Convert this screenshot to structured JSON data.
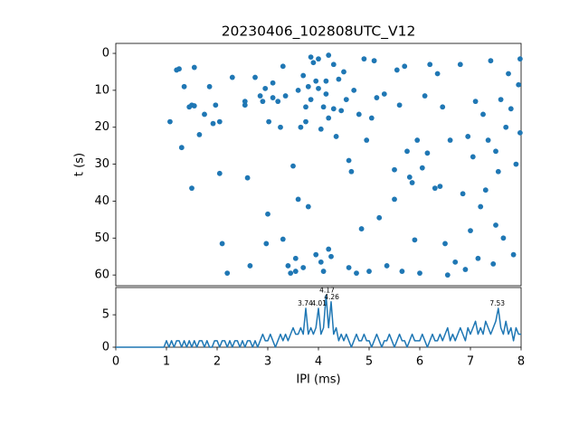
{
  "chart_data": [
    {
      "type": "scatter",
      "title": "20230406_102808UTC_V12",
      "ylabel": "t (s)",
      "color": "#1f77b4",
      "x": [
        1.07,
        1.2,
        1.25,
        1.3,
        1.35,
        1.45,
        1.5,
        1.5,
        1.55,
        1.55,
        1.65,
        1.75,
        1.85,
        1.92,
        1.97,
        2.05,
        2.05,
        2.1,
        2.2,
        2.3,
        2.55,
        2.55,
        2.6,
        2.65,
        2.75,
        2.85,
        2.9,
        2.95,
        2.97,
        3.0,
        3.02,
        3.1,
        3.1,
        3.2,
        3.25,
        3.3,
        3.3,
        3.35,
        3.4,
        3.45,
        3.5,
        3.55,
        3.55,
        3.6,
        3.6,
        3.65,
        3.7,
        3.7,
        3.75,
        3.75,
        3.8,
        3.8,
        3.85,
        3.85,
        3.9,
        3.95,
        3.95,
        4.0,
        4.0,
        4.05,
        4.05,
        4.1,
        4.1,
        4.15,
        4.15,
        4.2,
        4.2,
        4.2,
        4.25,
        4.3,
        4.3,
        4.35,
        4.4,
        4.45,
        4.5,
        4.55,
        4.6,
        4.6,
        4.65,
        4.7,
        4.75,
        4.8,
        4.85,
        4.9,
        4.95,
        5.0,
        5.05,
        5.1,
        5.15,
        5.2,
        5.3,
        5.35,
        5.5,
        5.5,
        5.55,
        5.6,
        5.65,
        5.7,
        5.75,
        5.8,
        5.85,
        5.9,
        5.95,
        6.0,
        6.05,
        6.1,
        6.15,
        6.2,
        6.3,
        6.35,
        6.4,
        6.45,
        6.5,
        6.55,
        6.6,
        6.7,
        6.8,
        6.85,
        6.9,
        6.95,
        7.0,
        7.05,
        7.1,
        7.15,
        7.2,
        7.25,
        7.3,
        7.35,
        7.4,
        7.45,
        7.5,
        7.5,
        7.55,
        7.6,
        7.65,
        7.7,
        7.75,
        7.8,
        7.85,
        7.9,
        7.95,
        7.98,
        7.98
      ],
      "y": [
        18.5,
        4.5,
        4.2,
        25.5,
        9,
        14.5,
        36.5,
        14,
        3.8,
        14.2,
        22,
        16.5,
        9,
        19,
        14,
        18.5,
        32.5,
        51.5,
        59.5,
        6.5,
        14,
        13,
        33.7,
        57.5,
        6.5,
        11.5,
        13,
        9.5,
        51.5,
        43.5,
        18.5,
        8,
        12,
        13,
        20,
        50.3,
        3.5,
        11.5,
        57.5,
        59.5,
        30.5,
        59,
        55.5,
        10,
        39.5,
        20,
        6,
        58,
        18.5,
        14.5,
        9,
        41.5,
        1,
        12.5,
        2.5,
        7.5,
        54.5,
        1.5,
        9.5,
        20.5,
        56.5,
        59,
        14.5,
        7.5,
        11,
        0.5,
        17.5,
        53,
        55,
        3,
        15,
        22.5,
        7,
        15.5,
        5,
        12.5,
        29,
        58,
        32,
        10,
        59.5,
        16.5,
        47.5,
        1.5,
        23.5,
        59,
        17.5,
        2,
        12,
        44.5,
        11,
        57.5,
        39.5,
        31.5,
        4.5,
        14,
        59,
        3.5,
        26.5,
        33.5,
        35,
        50.5,
        23.5,
        59.5,
        31,
        11.5,
        27,
        3,
        36.5,
        5.5,
        36,
        14.5,
        51.5,
        60,
        23.5,
        56.5,
        3,
        38,
        58.5,
        22.5,
        48,
        28,
        13,
        55.5,
        41.5,
        16.5,
        37,
        23.5,
        2,
        57,
        26.5,
        46.5,
        32,
        12.5,
        50,
        20,
        5.5,
        15,
        54.5,
        30,
        8.5,
        1.5,
        21.5
      ],
      "xlim": [
        0,
        8
      ],
      "ylim": [
        62.9,
        -2.7
      ],
      "yticks": [
        0,
        10,
        20,
        30,
        40,
        50,
        60
      ]
    },
    {
      "type": "line",
      "xlabel": "IPI (ms)",
      "color": "#1f77b4",
      "x": [
        0,
        0.05,
        0.1,
        0.15,
        0.2,
        0.25,
        0.3,
        0.35,
        0.4,
        0.45,
        0.5,
        0.55,
        0.6,
        0.65,
        0.7,
        0.75,
        0.8,
        0.85,
        0.9,
        0.95,
        1,
        1.05,
        1.1,
        1.15,
        1.2,
        1.25,
        1.3,
        1.35,
        1.4,
        1.45,
        1.5,
        1.55,
        1.6,
        1.65,
        1.7,
        1.75,
        1.8,
        1.85,
        1.9,
        1.95,
        2,
        2.05,
        2.1,
        2.15,
        2.2,
        2.25,
        2.3,
        2.35,
        2.4,
        2.45,
        2.5,
        2.55,
        2.6,
        2.65,
        2.7,
        2.75,
        2.8,
        2.85,
        2.9,
        2.95,
        3,
        3.05,
        3.1,
        3.15,
        3.2,
        3.25,
        3.3,
        3.35,
        3.4,
        3.45,
        3.5,
        3.55,
        3.6,
        3.65,
        3.7,
        3.75,
        3.8,
        3.85,
        3.9,
        3.95,
        4,
        4.05,
        4.1,
        4.15,
        4.2,
        4.25,
        4.3,
        4.35,
        4.4,
        4.45,
        4.5,
        4.55,
        4.6,
        4.65,
        4.7,
        4.75,
        4.8,
        4.85,
        4.9,
        4.95,
        5,
        5.05,
        5.1,
        5.15,
        5.2,
        5.25,
        5.3,
        5.35,
        5.4,
        5.45,
        5.5,
        5.55,
        5.6,
        5.65,
        5.7,
        5.75,
        5.8,
        5.85,
        5.9,
        5.95,
        6,
        6.05,
        6.1,
        6.15,
        6.2,
        6.25,
        6.3,
        6.35,
        6.4,
        6.45,
        6.5,
        6.55,
        6.6,
        6.65,
        6.7,
        6.75,
        6.8,
        6.85,
        6.9,
        6.95,
        7,
        7.05,
        7.1,
        7.15,
        7.2,
        7.25,
        7.3,
        7.35,
        7.4,
        7.45,
        7.5,
        7.55,
        7.6,
        7.65,
        7.7,
        7.75,
        7.8,
        7.85,
        7.9,
        7.95,
        8
      ],
      "values": [
        0,
        0,
        0,
        0,
        0,
        0,
        0,
        0,
        0,
        0,
        0,
        0,
        0,
        0,
        0,
        0,
        0,
        0,
        0,
        0,
        1,
        0,
        1,
        0,
        1,
        1,
        0,
        1,
        0,
        1,
        0,
        1,
        0,
        1,
        1,
        0,
        1,
        0,
        0,
        1,
        1,
        0,
        1,
        1,
        0,
        1,
        0,
        1,
        1,
        0,
        1,
        0,
        1,
        1,
        0,
        1,
        0,
        1,
        2,
        1,
        1,
        2,
        1,
        0,
        1,
        2,
        1,
        2,
        1,
        2,
        3,
        2,
        2,
        3,
        2,
        6,
        2,
        3,
        2,
        3,
        6,
        2,
        3,
        8,
        3,
        7,
        2,
        3,
        1,
        2,
        1,
        2,
        1,
        0,
        1,
        2,
        1,
        1,
        2,
        1,
        1,
        0,
        1,
        2,
        1,
        0,
        1,
        1,
        2,
        1,
        0,
        1,
        2,
        1,
        1,
        0,
        1,
        2,
        1,
        1,
        1,
        2,
        1,
        0,
        1,
        2,
        1,
        1,
        2,
        1,
        2,
        3,
        1,
        2,
        1,
        2,
        3,
        2,
        1,
        3,
        2,
        3,
        4,
        2,
        3,
        2,
        4,
        3,
        2,
        3,
        4,
        6,
        3,
        2,
        4,
        2,
        3,
        1,
        3,
        2,
        2
      ],
      "annotations": [
        {
          "x": 3.74,
          "y": 6,
          "text": "3.74"
        },
        {
          "x": 4.01,
          "y": 6,
          "text": "4.01"
        },
        {
          "x": 4.17,
          "y": 8,
          "text": "4.17"
        },
        {
          "x": 4.26,
          "y": 7,
          "text": "4.26"
        },
        {
          "x": 7.53,
          "y": 6,
          "text": "7.53"
        }
      ],
      "xlim": [
        0,
        8
      ],
      "ylim": [
        0,
        9.2
      ],
      "xticks": [
        0,
        1,
        2,
        3,
        4,
        5,
        6,
        7,
        8
      ],
      "yticks": [
        0,
        5
      ]
    }
  ]
}
